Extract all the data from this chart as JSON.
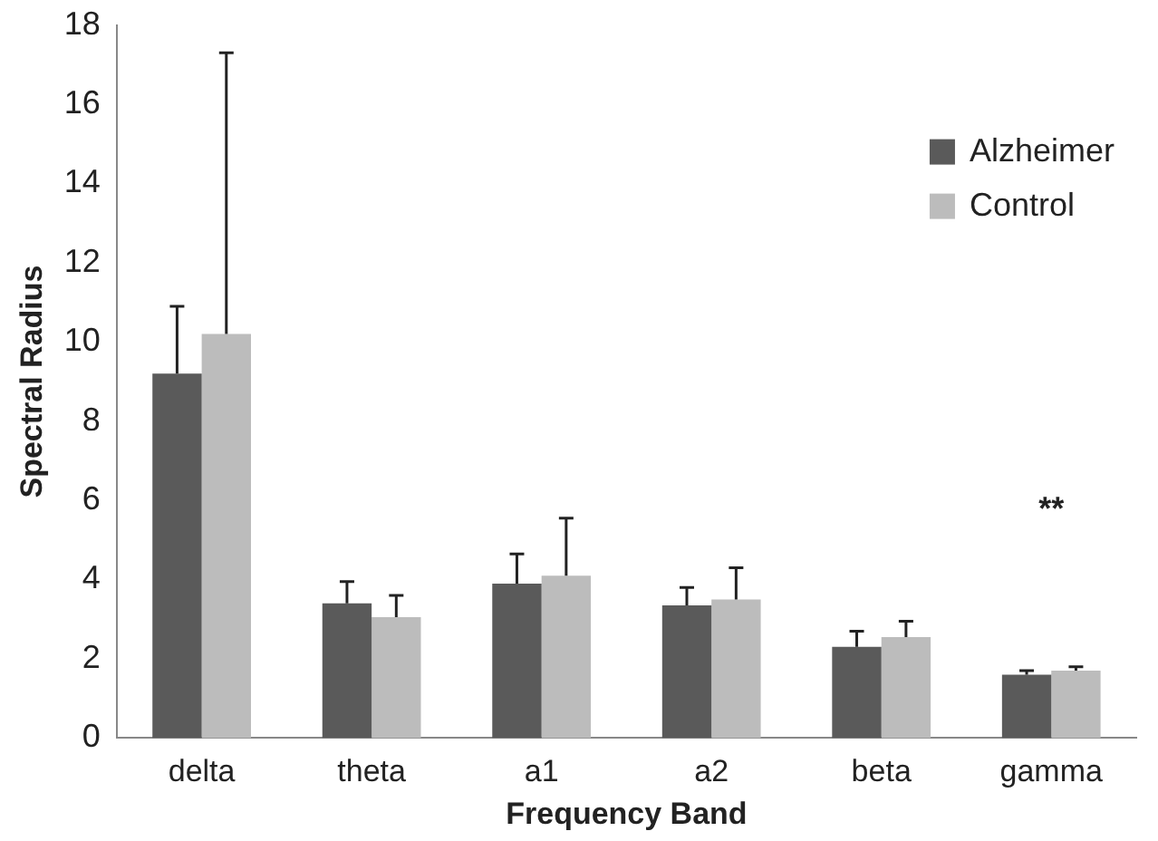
{
  "chart_data": {
    "type": "bar",
    "xlabel": "Frequency Band",
    "ylabel": "Spectral Radius",
    "categories": [
      "delta",
      "theta",
      "a1",
      "a2",
      "beta",
      "gamma"
    ],
    "series": [
      {
        "name": "Alzheimer",
        "color": "#5a5a5a",
        "values": [
          9.2,
          3.4,
          3.9,
          3.35,
          2.3,
          1.6
        ],
        "errors": [
          [
            9.2,
            10.9
          ],
          [
            3.4,
            3.95
          ],
          [
            3.9,
            4.65
          ],
          [
            3.35,
            3.8
          ],
          [
            2.3,
            2.7
          ],
          [
            1.6,
            1.7
          ]
        ]
      },
      {
        "name": "Control",
        "color": "#bcbcbc",
        "values": [
          10.2,
          3.05,
          4.1,
          3.5,
          2.55,
          1.7
        ],
        "errors": [
          [
            10.2,
            17.3
          ],
          [
            3.05,
            3.6
          ],
          [
            4.1,
            5.55
          ],
          [
            3.5,
            4.3
          ],
          [
            2.55,
            2.95
          ],
          [
            1.7,
            1.8
          ]
        ]
      }
    ],
    "annotations": [
      "**"
    ],
    "ylim": [
      0,
      18
    ],
    "yticks": [
      0,
      2,
      4,
      6,
      8,
      10,
      12,
      14,
      16,
      18
    ],
    "grid": false,
    "legend": "top right"
  }
}
